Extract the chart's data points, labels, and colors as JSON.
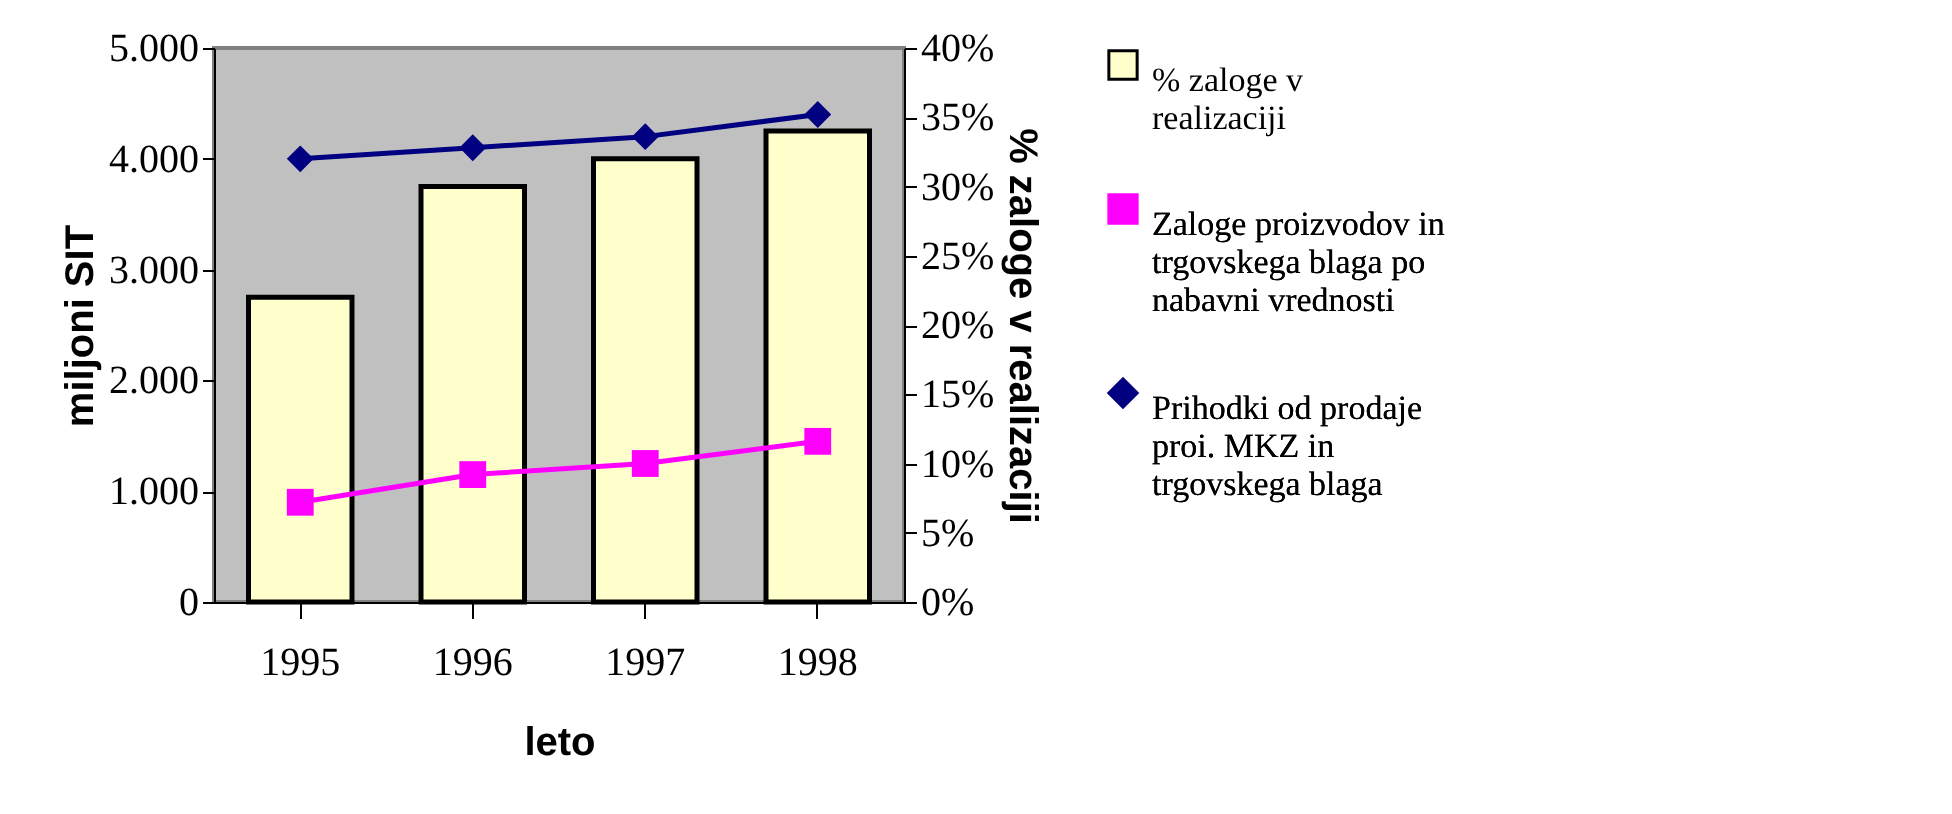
{
  "chart_data": {
    "type": "bar",
    "xlabel": "leto",
    "ylabel": "miljoni SIT",
    "y2label": "% zaloge v realizaciji",
    "categories": [
      "1995",
      "1996",
      "1997",
      "1998"
    ],
    "series": [
      {
        "name": "% zaloge v realizaciji",
        "axis": "y2",
        "color": "#ffffcc",
        "values": [
          22,
          30,
          32,
          34
        ]
      },
      {
        "name": "Zaloge proizvodov in trgovskega blaga po nabavni vrednosti",
        "type": "line",
        "color": "#ff00ff",
        "marker": "square",
        "values": [
          900,
          1150,
          1250,
          1450
        ]
      },
      {
        "name": "Prihodki od prodaje proi. MKZ in trgovskega blaga",
        "type": "line",
        "color": "#000080",
        "marker": "diamond",
        "values": [
          4000,
          4100,
          4200,
          4400
        ]
      }
    ],
    "ylim": [
      0,
      5000
    ],
    "yticks": [
      0,
      {
        "value": 1000,
        "label": "1.000"
      },
      {
        "value": 2000,
        "label": "2.000"
      },
      {
        "value": 3000,
        "label": "3.000"
      },
      {
        "value": 4000,
        "label": "4.000"
      },
      {
        "value": 5000,
        "label": "5.000"
      }
    ],
    "y2lim": [
      0,
      40
    ],
    "y2ticks": [
      {
        "value": 0,
        "label": "0%"
      },
      {
        "value": 5,
        "label": "5%"
      },
      {
        "value": 10,
        "label": "10%"
      },
      {
        "value": 15,
        "label": "15%"
      },
      {
        "value": 20,
        "label": "20%"
      },
      {
        "value": 25,
        "label": "25%"
      },
      {
        "value": 30,
        "label": "30%"
      },
      {
        "value": 35,
        "label": "35%"
      },
      {
        "value": 40,
        "label": "40%"
      }
    ],
    "grid": false,
    "legend": "right"
  }
}
